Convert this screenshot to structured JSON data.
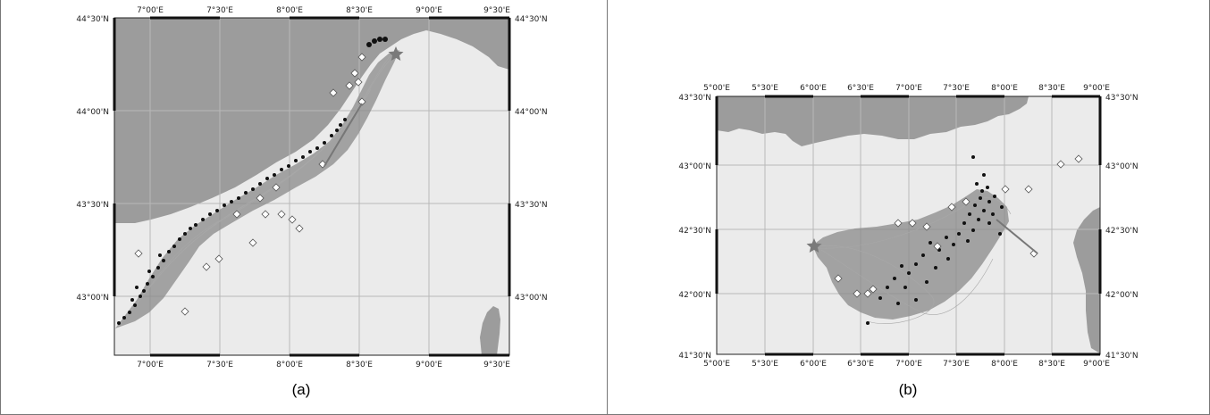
{
  "panel_a": {
    "caption": "(a)",
    "top_ticks": [
      "7°00'E",
      "7°30'E",
      "8°00'E",
      "8°30'E",
      "9°00'E",
      "9°30'E"
    ],
    "bottom_ticks": [
      "7°00'E",
      "7°30'E",
      "8°00'E",
      "8°30'E",
      "9°00'E",
      "9°30'E"
    ],
    "left_ticks": [
      "44°30'N",
      "44°00'N",
      "43°30'N",
      "43°00'N"
    ],
    "right_ticks": [
      "44°30'N",
      "44°00'N",
      "43°30'N",
      "43°00'N"
    ],
    "lon_range": [
      6.67,
      9.52
    ],
    "lat_range": [
      42.71,
      44.53
    ]
  },
  "panel_b": {
    "caption": "(b)",
    "top_ticks": [
      "5°00'E",
      "5°30'E",
      "6°00'E",
      "6°30'E",
      "7°00'E",
      "7°30'E",
      "8°00'E",
      "8°30'E",
      "9°00'E"
    ],
    "bottom_ticks": [
      "5°00'E",
      "5°30'E",
      "6°00'E",
      "6°30'E",
      "7°00'E",
      "7°30'E",
      "8°00'E",
      "8°30'E",
      "9°00'E"
    ],
    "left_ticks": [
      "43°30'N",
      "43°00'N",
      "42°30'N",
      "42°00'N",
      "41°30'N"
    ],
    "right_ticks": [
      "43°30'N",
      "43°00'N",
      "42°30'N",
      "42°00'N",
      "41°30'N"
    ],
    "lon_range": [
      5.0,
      9.0
    ],
    "lat_range": [
      41.5,
      43.5
    ]
  },
  "colors": {
    "land": "#9c9c9c",
    "sea": "#ebebeb",
    "grid": "#b8b8b8",
    "spread": "#8a8a8a",
    "particles": "#111111",
    "observations": "#ffffff",
    "release_star": "#7a7a7a"
  }
}
